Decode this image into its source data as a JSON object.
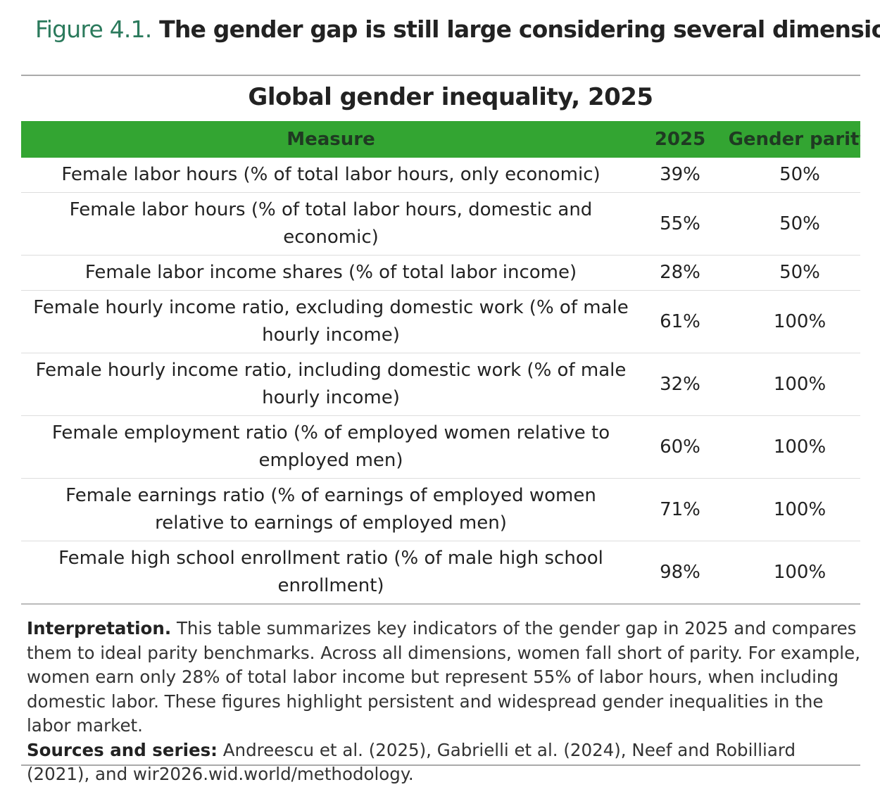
{
  "header": {
    "figure_label": "Figure 4.1.",
    "title": "The gender gap is still large considering several dimensions"
  },
  "table": {
    "title": "Global gender inequality, 2025",
    "columns": [
      "Measure",
      "2025",
      "Gender parity"
    ],
    "rows": [
      [
        "Female labor hours (% of total labor hours, only economic)",
        "39%",
        "50%"
      ],
      [
        "Female labor hours (% of total labor hours, domestic and economic)",
        "55%",
        "50%"
      ],
      [
        "Female labor income shares (% of total labor income)",
        "28%",
        "50%"
      ],
      [
        "Female hourly income ratio, excluding domestic work (% of male hourly income)",
        "61%",
        "100%"
      ],
      [
        "Female hourly income ratio, including domestic work (% of male hourly income)",
        "32%",
        "100%"
      ],
      [
        "Female employment ratio (% of employed women relative to employed men)",
        "60%",
        "100%"
      ],
      [
        "Female earnings ratio (% of earnings of employed women relative to earnings of employed men)",
        "71%",
        "100%"
      ],
      [
        "Female high school enrollment ratio (% of male high school enrollment)",
        "98%",
        "100%"
      ]
    ]
  },
  "notes": {
    "interpretation_label": "Interpretation.",
    "interpretation": "This table summarizes key indicators of the gender gap in 2025 and compares them to ideal parity benchmarks. Across all dimensions, women fall short of parity. For example, women earn only 28% of total labor income but represent 55% of labor hours, when including domestic labor. These figures highlight persistent and widespread gender inequalities in the labor market.",
    "sources_label": "Sources and series:",
    "sources": "Andreescu et al. (2025), Gabrielli et al. (2024), Neef and Robilliard (2021), and wir2026.wid.world/methodology."
  }
}
